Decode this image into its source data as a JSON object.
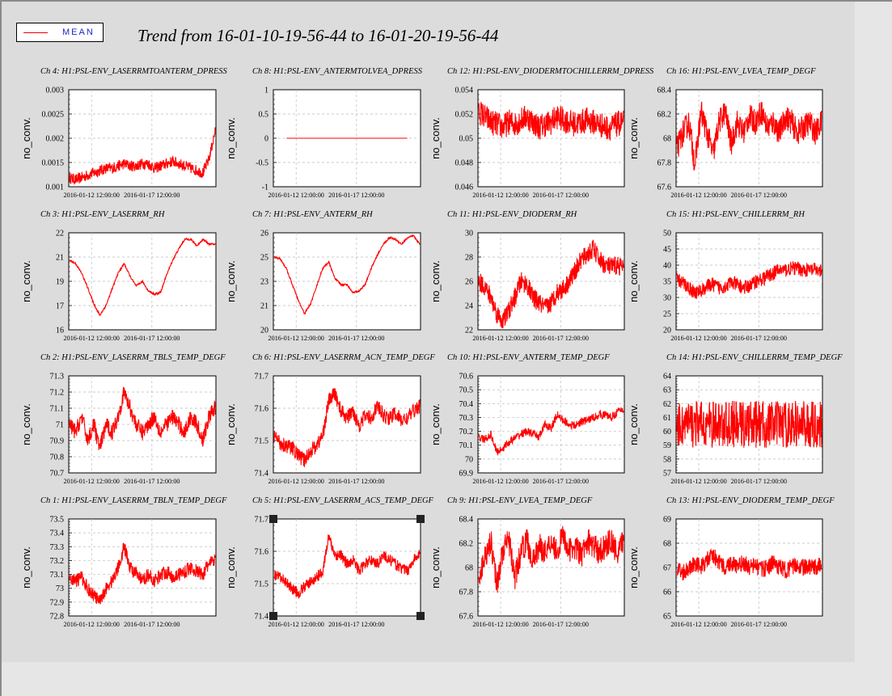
{
  "legend": {
    "label": "MEAN",
    "color": "#ff0000"
  },
  "title": "Trend from 16-01-10-19-56-44 to 16-01-20-19-56-44",
  "chart_data": [
    {
      "type": "line",
      "title": "Ch 4: H1:PSL-ENV_LASERRMTOANTERM_DPRESS",
      "ylabel": "no_conv.",
      "yticks": [
        "0.003",
        "0.0025",
        "0.002",
        "0.0015",
        "0.001"
      ],
      "ylim": [
        0.0009,
        0.003
      ],
      "xticks": [
        "2016-01-12 12:00:00",
        "2016-01-17 12:00:00"
      ],
      "series": [
        {
          "values": [
            0.0011,
            0.00105,
            0.0011,
            0.00115,
            0.0012,
            0.00125,
            0.0013,
            0.0013,
            0.00135,
            0.0014,
            0.00135,
            0.00135,
            0.0014,
            0.0014,
            0.0013,
            0.00135,
            0.0014,
            0.00145,
            0.0014,
            0.00135,
            0.0013,
            0.00125,
            0.0012,
            0.0015,
            0.0021
          ],
          "noise": 0.00012
        }
      ]
    },
    {
      "type": "line",
      "title": "Ch 8: H1:PSL-ENV_ANTERMTOLVEA_DPRESS",
      "ylabel": "no_conv.",
      "yticks": [
        "1",
        "0.5",
        "0",
        "-0.5",
        "-1"
      ],
      "ylim": [
        -1,
        1
      ],
      "xticks": [
        "2016-01-12 12:00:00",
        "2016-01-17 12:00:00"
      ],
      "series": [
        {
          "values": [
            0,
            0,
            0,
            0,
            0,
            0,
            0,
            0,
            0,
            0,
            0,
            0,
            0,
            0,
            0,
            0,
            0,
            0,
            0,
            0,
            0,
            0,
            0,
            0,
            0
          ],
          "noise": 0
        }
      ]
    },
    {
      "type": "line",
      "title": "Ch 12: H1:PSL-ENV_DIODERMTOCHILLERRM_DPRESS",
      "ylabel": "no_conv.",
      "yticks": [
        "0.054",
        "0.052",
        "0.05",
        "0.048",
        "0.046"
      ],
      "ylim": [
        0.045,
        0.054
      ],
      "xticks": [
        "2016-01-12 12:00:00",
        "2016-01-17 12:00:00"
      ],
      "series": [
        {
          "values": [
            0.052,
            0.0515,
            0.051,
            0.0508,
            0.0505,
            0.051,
            0.0508,
            0.0512,
            0.0515,
            0.051,
            0.0505,
            0.0508,
            0.051,
            0.0515,
            0.0512,
            0.051,
            0.0508,
            0.051,
            0.0512,
            0.051,
            0.0508,
            0.0505,
            0.0505,
            0.0508,
            0.051
          ],
          "noise": 0.0012
        }
      ]
    },
    {
      "type": "line",
      "title": "Ch 16: H1:PSL-ENV_LVEA_TEMP_DEGF",
      "ylabel": "no_conv.",
      "yticks": [
        "68.4",
        "68.2",
        "68",
        "67.8",
        "67.6"
      ],
      "ylim": [
        67.6,
        68.5
      ],
      "xticks": [
        "2016-01-12 12:00:00",
        "2016-01-17 12:00:00"
      ],
      "series": [
        {
          "values": [
            67.95,
            68.1,
            68.2,
            67.8,
            68.3,
            68.1,
            67.9,
            68.2,
            68.3,
            68.0,
            68.2,
            68.1,
            68.25,
            68.2,
            68.3,
            68.15,
            68.2,
            68.1,
            68.25,
            68.2,
            68.1,
            68.15,
            68.2,
            68.1,
            68.2
          ],
          "noise": 0.12
        }
      ]
    },
    {
      "type": "line",
      "title": "Ch 3: H1:PSL-ENV_LASERRM_RH",
      "ylabel": "no_conv.",
      "yticks": [
        "22",
        "21",
        "19",
        "17",
        "16"
      ],
      "ylim": [
        16,
        22
      ],
      "xticks": [
        "2016-01-12 12:00:00",
        "2016-01-17 12:00:00"
      ],
      "series": [
        {
          "values": [
            20.3,
            20.1,
            19.5,
            18.6,
            17.6,
            16.9,
            17.5,
            18.5,
            19.5,
            20.1,
            19.3,
            18.7,
            19.0,
            18.4,
            18.2,
            18.3,
            19.4,
            20.3,
            21.0,
            21.6,
            21.6,
            21.2,
            21.6,
            21.3,
            21.3
          ],
          "noise": 0.06
        }
      ]
    },
    {
      "type": "line",
      "title": "Ch 7: H1:PSL-ENV_ANTERM_RH",
      "ylabel": "no_conv.",
      "yticks": [
        "26",
        "25",
        "23",
        "21",
        "20"
      ],
      "ylim": [
        20,
        26
      ],
      "xticks": [
        "2016-01-12 12:00:00",
        "2016-01-17 12:00:00"
      ],
      "series": [
        {
          "values": [
            24.5,
            24.4,
            23.8,
            22.8,
            21.8,
            21.0,
            21.6,
            22.7,
            23.8,
            24.2,
            23.2,
            22.8,
            22.8,
            22.3,
            22.4,
            22.8,
            23.8,
            24.6,
            25.3,
            25.7,
            25.6,
            25.3,
            25.7,
            25.8,
            25.3
          ],
          "noise": 0.06
        }
      ]
    },
    {
      "type": "line",
      "title": "Ch 11: H1:PSL-ENV_DIODERM_RH",
      "ylabel": "no_conv.",
      "yticks": [
        "30",
        "28",
        "26",
        "24",
        "22"
      ],
      "ylim": [
        22,
        31
      ],
      "xticks": [
        "2016-01-12 12:00:00",
        "2016-01-17 12:00:00"
      ],
      "series": [
        {
          "values": [
            26.5,
            26.0,
            25.0,
            23.5,
            22.8,
            23.8,
            25.0,
            26.5,
            26.2,
            25.0,
            24.5,
            24.0,
            24.5,
            25.5,
            25.8,
            26.5,
            27.5,
            28.5,
            29.0,
            29.5,
            28.5,
            28.0,
            27.8,
            28.0,
            27.8
          ],
          "noise": 0.9
        }
      ]
    },
    {
      "type": "line",
      "title": "Ch 15: H1:PSL-ENV_CHILLERRM_RH",
      "ylabel": "no_conv.",
      "yticks": [
        "50",
        "45",
        "40",
        "35",
        "30",
        "25",
        "20"
      ],
      "ylim": [
        20,
        50
      ],
      "xticks": [
        "2016-01-12 12:00:00",
        "2016-01-17 12:00:00"
      ],
      "series": [
        {
          "values": [
            35.5,
            34.5,
            33.0,
            31.5,
            32.0,
            33.5,
            34.0,
            33.0,
            33.5,
            34.5,
            34.0,
            33.0,
            33.5,
            35.0,
            35.5,
            36.5,
            37.5,
            38.5,
            38.5,
            39.0,
            39.0,
            38.5,
            38.5,
            38.5,
            38.0
          ],
          "noise": 2.2
        }
      ]
    },
    {
      "type": "line",
      "title": "Ch 2: H1:PSL-ENV_LASERRM_TBLS_TEMP_DEGF",
      "ylabel": "no_conv.",
      "yticks": [
        "71.3",
        "71.2",
        "71.1",
        "71",
        "70.9",
        "70.8",
        "70.7"
      ],
      "ylim": [
        70.7,
        71.3
      ],
      "xticks": [
        "2016-01-12 12:00:00",
        "2016-01-17 12:00:00"
      ],
      "series": [
        {
          "values": [
            71.0,
            70.95,
            71.05,
            70.9,
            71.0,
            70.85,
            71.0,
            70.95,
            71.05,
            71.2,
            71.1,
            71.0,
            70.95,
            71.0,
            71.05,
            70.95,
            71.0,
            71.05,
            71.0,
            70.95,
            71.05,
            71.0,
            70.9,
            71.05,
            71.1
          ],
          "noise": 0.05
        }
      ]
    },
    {
      "type": "line",
      "title": "Ch 6: H1:PSL-ENV_LASERRM_ACN_TEMP_DEGF",
      "ylabel": "no_conv.",
      "yticks": [
        "71.7",
        "71.6",
        "71.5",
        "71.4"
      ],
      "ylim": [
        71.33,
        71.72
      ],
      "xticks": [
        "2016-01-12 12:00:00",
        "2016-01-17 12:00:00"
      ],
      "series": [
        {
          "values": [
            71.48,
            71.45,
            71.44,
            71.43,
            71.4,
            71.38,
            71.42,
            71.44,
            71.48,
            71.62,
            71.65,
            71.58,
            71.55,
            71.58,
            71.52,
            71.56,
            71.55,
            71.6,
            71.56,
            71.55,
            71.57,
            71.54,
            71.55,
            71.58,
            71.6
          ],
          "noise": 0.03
        }
      ]
    },
    {
      "type": "line",
      "title": "Ch 10: H1:PSL-ENV_ANTERM_TEMP_DEGF",
      "ylabel": "no_conv.",
      "yticks": [
        "70.6",
        "70.5",
        "70.4",
        "70.3",
        "70.2",
        "70.1",
        "70",
        "69.9"
      ],
      "ylim": [
        69.9,
        70.6
      ],
      "xticks": [
        "2016-01-12 12:00:00",
        "2016-01-17 12:00:00"
      ],
      "series": [
        {
          "values": [
            70.15,
            70.14,
            70.18,
            70.05,
            70.08,
            70.12,
            70.15,
            70.18,
            70.2,
            70.18,
            70.16,
            70.25,
            70.22,
            70.32,
            70.28,
            70.25,
            70.24,
            70.27,
            70.28,
            70.3,
            70.32,
            70.32,
            70.3,
            70.34,
            70.36
          ],
          "noise": 0.03
        }
      ]
    },
    {
      "type": "line",
      "title": "Ch 14: H1:PSL-ENV_CHILLERRM_TEMP_DEGF",
      "ylabel": "no_conv.",
      "yticks": [
        "64",
        "63",
        "62",
        "61",
        "60",
        "59",
        "58",
        "57"
      ],
      "ylim": [
        57,
        64
      ],
      "xticks": [
        "2016-01-12 12:00:00",
        "2016-01-17 12:00:00"
      ],
      "series": [
        {
          "values": [
            60.5,
            60.5,
            60.5,
            60.5,
            60.5,
            60.5,
            60.5,
            60.5,
            60.5,
            60.5,
            60.5,
            60.5,
            60.5,
            60.5,
            60.5,
            60.5,
            60.5,
            60.5,
            60.5,
            60.5,
            60.5,
            60.5,
            60.5,
            60.5,
            60.5
          ],
          "noise": 1.7
        }
      ]
    },
    {
      "type": "line",
      "title": "Ch 1: H1:PSL-ENV_LASERRM_TBLN_TEMP_DEGF",
      "ylabel": "no_conv.",
      "yticks": [
        "73.5",
        "73.4",
        "73.3",
        "73.2",
        "73.1",
        "73",
        "72.9",
        "72.8"
      ],
      "ylim": [
        72.8,
        73.5
      ],
      "xticks": [
        "2016-01-12 12:00:00",
        "2016-01-17 12:00:00"
      ],
      "series": [
        {
          "values": [
            73.08,
            73.05,
            73.08,
            73.0,
            72.95,
            72.9,
            73.0,
            73.05,
            73.15,
            73.3,
            73.15,
            73.1,
            73.05,
            73.1,
            73.05,
            73.1,
            73.12,
            73.08,
            73.1,
            73.12,
            73.15,
            73.12,
            73.1,
            73.18,
            73.2
          ],
          "noise": 0.05
        }
      ]
    },
    {
      "type": "line",
      "title": "Ch 5: H1:PSL-ENV_LASERRM_ACS_TEMP_DEGF",
      "ylabel": "no_conv.",
      "yticks": [
        "71.7",
        "71.6",
        "71.5",
        "71.4"
      ],
      "ylim": [
        71.35,
        71.78
      ],
      "xticks": [
        "2016-01-12 12:00:00",
        "2016-01-17 12:00:00"
      ],
      "series": [
        {
          "values": [
            71.53,
            71.52,
            71.5,
            71.47,
            71.45,
            71.48,
            71.5,
            71.52,
            71.55,
            71.7,
            71.62,
            71.62,
            71.58,
            71.6,
            71.55,
            71.58,
            71.6,
            71.58,
            71.62,
            71.6,
            71.58,
            71.56,
            71.55,
            71.6,
            71.62
          ],
          "noise": 0.025
        }
      ]
    },
    {
      "type": "line",
      "title": "Ch 9: H1:PSL-ENV_LVEA_TEMP_DEGF",
      "ylabel": "no_conv.",
      "yticks": [
        "68.4",
        "68.2",
        "68",
        "67.8",
        "67.6"
      ],
      "ylim": [
        67.6,
        68.5
      ],
      "xticks": [
        "2016-01-12 12:00:00",
        "2016-01-17 12:00:00"
      ],
      "series": [
        {
          "values": [
            67.95,
            68.15,
            68.3,
            67.9,
            68.2,
            68.3,
            67.95,
            68.2,
            68.3,
            68.1,
            68.25,
            68.2,
            68.3,
            68.2,
            68.35,
            68.2,
            68.25,
            68.15,
            68.3,
            68.25,
            68.2,
            68.25,
            68.3,
            68.15,
            68.3
          ],
          "noise": 0.12
        }
      ]
    },
    {
      "type": "line",
      "title": "Ch 13: H1:PSL-ENV_DIODERM_TEMP_DEGF",
      "ylabel": "no_conv.",
      "yticks": [
        "69",
        "68",
        "67",
        "66",
        "65"
      ],
      "ylim": [
        65,
        69
      ],
      "xticks": [
        "2016-01-12 12:00:00",
        "2016-01-17 12:00:00"
      ],
      "series": [
        {
          "values": [
            67.0,
            66.8,
            67.0,
            67.2,
            67.0,
            67.3,
            67.5,
            67.2,
            67.0,
            67.2,
            67.0,
            67.2,
            67.0,
            67.1,
            66.9,
            67.0,
            67.2,
            67.0,
            66.9,
            67.0,
            67.1,
            67.0,
            67.0,
            67.0,
            67.1
          ],
          "noise": 0.35
        }
      ]
    }
  ]
}
